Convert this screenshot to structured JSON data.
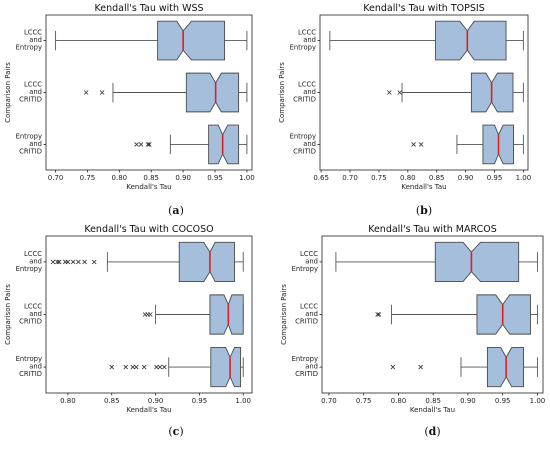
{
  "axis_labels": {
    "x": "Kendall's Tau",
    "y": "Comparison Pairs"
  },
  "categories": [
    [
      "LCCC",
      "and",
      "Entropy"
    ],
    [
      "LCCC",
      "and",
      "CRITID"
    ],
    [
      "Entropy",
      "and",
      "CRITID"
    ]
  ],
  "colors": {
    "box_fill": "#a4bedb",
    "box_edge": "#4b4b4b",
    "median": "#e0201c",
    "whisker": "#555555",
    "flier": "#333333"
  },
  "chart_data": [
    {
      "type": "boxplot",
      "title": "Kendall's Tau with WSS",
      "caption": "a",
      "xlim": [
        0.685,
        1.008
      ],
      "xticks": [
        0.7,
        0.75,
        0.8,
        0.85,
        0.9,
        0.95,
        1.0
      ],
      "xtick_labels": [
        "0.70",
        "0.75",
        "0.80",
        "0.85",
        "0.90",
        "0.95",
        "1.00"
      ],
      "boxes": [
        {
          "label": "LCCC and Entropy",
          "whislo": 0.7,
          "q1": 0.86,
          "median": 0.9,
          "q3": 0.965,
          "whishi": 1.0,
          "notch_lo": 0.89,
          "notch_hi": 0.913,
          "fliers": []
        },
        {
          "label": "LCCC and CRITID",
          "whislo": 0.79,
          "q1": 0.905,
          "median": 0.951,
          "q3": 0.987,
          "whishi": 1.0,
          "notch_lo": 0.942,
          "notch_hi": 0.96,
          "fliers": [
            0.748,
            0.773
          ]
        },
        {
          "label": "Entropy and CRITID",
          "whislo": 0.88,
          "q1": 0.94,
          "median": 0.962,
          "q3": 0.987,
          "whishi": 1.0,
          "notch_lo": 0.955,
          "notch_hi": 0.97,
          "fliers": [
            0.827,
            0.834,
            0.845,
            0.847
          ]
        }
      ]
    },
    {
      "type": "boxplot",
      "title": "Kendall's Tau with TOPSIS",
      "caption": "b",
      "xlim": [
        0.648,
        1.008
      ],
      "xticks": [
        0.65,
        0.7,
        0.75,
        0.8,
        0.85,
        0.9,
        0.95,
        1.0
      ],
      "xtick_labels": [
        "0.65",
        "0.70",
        "0.75",
        "0.80",
        "0.85",
        "0.90",
        "0.95",
        "1.00"
      ],
      "boxes": [
        {
          "label": "LCCC and Entropy",
          "whislo": 0.665,
          "q1": 0.848,
          "median": 0.903,
          "q3": 0.97,
          "whishi": 1.0,
          "notch_lo": 0.89,
          "notch_hi": 0.915,
          "fliers": []
        },
        {
          "label": "LCCC and CRITID",
          "whislo": 0.79,
          "q1": 0.91,
          "median": 0.945,
          "q3": 0.982,
          "whishi": 1.0,
          "notch_lo": 0.935,
          "notch_hi": 0.955,
          "fliers": [
            0.768,
            0.786
          ]
        },
        {
          "label": "Entropy and CRITID",
          "whislo": 0.885,
          "q1": 0.93,
          "median": 0.957,
          "q3": 0.983,
          "whishi": 1.0,
          "notch_lo": 0.95,
          "notch_hi": 0.965,
          "fliers": [
            0.81,
            0.823
          ]
        }
      ]
    },
    {
      "type": "boxplot",
      "title": "Kendall's Tau with COCOSO",
      "caption": "c",
      "xlim": [
        0.775,
        1.01
      ],
      "xticks": [
        0.8,
        0.85,
        0.9,
        0.95,
        1.0
      ],
      "xtick_labels": [
        "0.80",
        "0.85",
        "0.90",
        "0.95",
        "1.00"
      ],
      "boxes": [
        {
          "label": "LCCC and Entropy",
          "whislo": 0.845,
          "q1": 0.927,
          "median": 0.962,
          "q3": 0.99,
          "whishi": 1.0,
          "notch_lo": 0.955,
          "notch_hi": 0.968,
          "fliers": [
            0.783,
            0.788,
            0.79,
            0.797,
            0.8,
            0.806,
            0.812,
            0.819,
            0.83
          ]
        },
        {
          "label": "LCCC and CRITID",
          "whislo": 0.9,
          "q1": 0.962,
          "median": 0.983,
          "q3": 1.0,
          "whishi": 1.0,
          "notch_lo": 0.978,
          "notch_hi": 0.987,
          "fliers": [
            0.888,
            0.891,
            0.894
          ]
        },
        {
          "label": "Entropy and CRITID",
          "whislo": 0.915,
          "q1": 0.963,
          "median": 0.985,
          "q3": 0.997,
          "whishi": 1.0,
          "notch_lo": 0.98,
          "notch_hi": 0.99,
          "fliers": [
            0.85,
            0.866,
            0.874,
            0.878,
            0.887,
            0.901,
            0.905,
            0.91
          ]
        }
      ]
    },
    {
      "type": "boxplot",
      "title": "Kendall's Tau with MARCOS",
      "caption": "d",
      "xlim": [
        0.69,
        1.008
      ],
      "xticks": [
        0.7,
        0.75,
        0.8,
        0.85,
        0.9,
        0.95,
        1.0
      ],
      "xtick_labels": [
        "0.70",
        "0.75",
        "0.80",
        "0.85",
        "0.90",
        "0.95",
        "1.00"
      ],
      "boxes": [
        {
          "label": "LCCC and Entropy",
          "whislo": 0.71,
          "q1": 0.853,
          "median": 0.905,
          "q3": 0.973,
          "whishi": 1.0,
          "notch_lo": 0.893,
          "notch_hi": 0.918,
          "fliers": []
        },
        {
          "label": "LCCC and CRITID",
          "whislo": 0.79,
          "q1": 0.913,
          "median": 0.95,
          "q3": 0.99,
          "whishi": 1.0,
          "notch_lo": 0.94,
          "notch_hi": 0.96,
          "fliers": [
            0.77,
            0.772
          ]
        },
        {
          "label": "Entropy and CRITID",
          "whislo": 0.89,
          "q1": 0.928,
          "median": 0.955,
          "q3": 0.98,
          "whishi": 1.0,
          "notch_lo": 0.947,
          "notch_hi": 0.963,
          "fliers": [
            0.792,
            0.832
          ]
        }
      ]
    }
  ]
}
